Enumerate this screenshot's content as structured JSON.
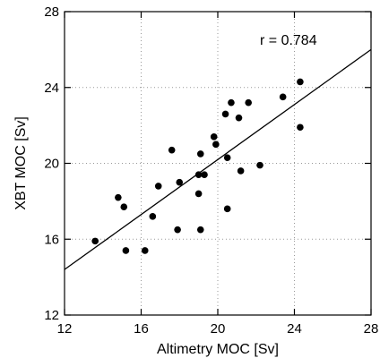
{
  "chart_data": {
    "type": "scatter",
    "title": "",
    "xlabel": "Altimetry MOC [Sv]",
    "ylabel": "XBT MOC [Sv]",
    "xlim": [
      12,
      28
    ],
    "ylim": [
      12,
      28
    ],
    "xticks": [
      "12",
      "16",
      "20",
      "24",
      "28"
    ],
    "yticks": [
      "12",
      "16",
      "20",
      "24",
      "28"
    ],
    "grid": true,
    "grid_style": "dotted",
    "annotation": "r = 0.784",
    "series": [
      {
        "points": [
          {
            "x": 13.6,
            "y": 15.9
          },
          {
            "x": 14.8,
            "y": 18.2
          },
          {
            "x": 15.1,
            "y": 17.7
          },
          {
            "x": 15.2,
            "y": 15.4
          },
          {
            "x": 16.2,
            "y": 15.4
          },
          {
            "x": 16.6,
            "y": 17.2
          },
          {
            "x": 16.9,
            "y": 18.8
          },
          {
            "x": 17.6,
            "y": 20.7
          },
          {
            "x": 17.9,
            "y": 16.5
          },
          {
            "x": 18.0,
            "y": 19.0
          },
          {
            "x": 19.0,
            "y": 18.4
          },
          {
            "x": 19.0,
            "y": 19.4
          },
          {
            "x": 19.1,
            "y": 20.5
          },
          {
            "x": 19.1,
            "y": 16.5
          },
          {
            "x": 19.3,
            "y": 19.4
          },
          {
            "x": 19.8,
            "y": 21.4
          },
          {
            "x": 19.9,
            "y": 21.0
          },
          {
            "x": 20.4,
            "y": 22.6
          },
          {
            "x": 20.5,
            "y": 20.3
          },
          {
            "x": 20.5,
            "y": 17.6
          },
          {
            "x": 20.7,
            "y": 23.2
          },
          {
            "x": 21.1,
            "y": 22.4
          },
          {
            "x": 21.2,
            "y": 19.6
          },
          {
            "x": 21.6,
            "y": 23.2
          },
          {
            "x": 22.2,
            "y": 19.9
          },
          {
            "x": 23.4,
            "y": 23.5
          },
          {
            "x": 24.3,
            "y": 24.3
          },
          {
            "x": 24.3,
            "y": 21.9
          }
        ]
      }
    ],
    "fit_line": {
      "from": {
        "x": 12,
        "y": 14.4
      },
      "to": {
        "x": 28,
        "y": 26.0
      }
    },
    "colors": {
      "marker": "#000000",
      "line": "#000000",
      "grid": "#999999",
      "axes": "#000000"
    }
  }
}
